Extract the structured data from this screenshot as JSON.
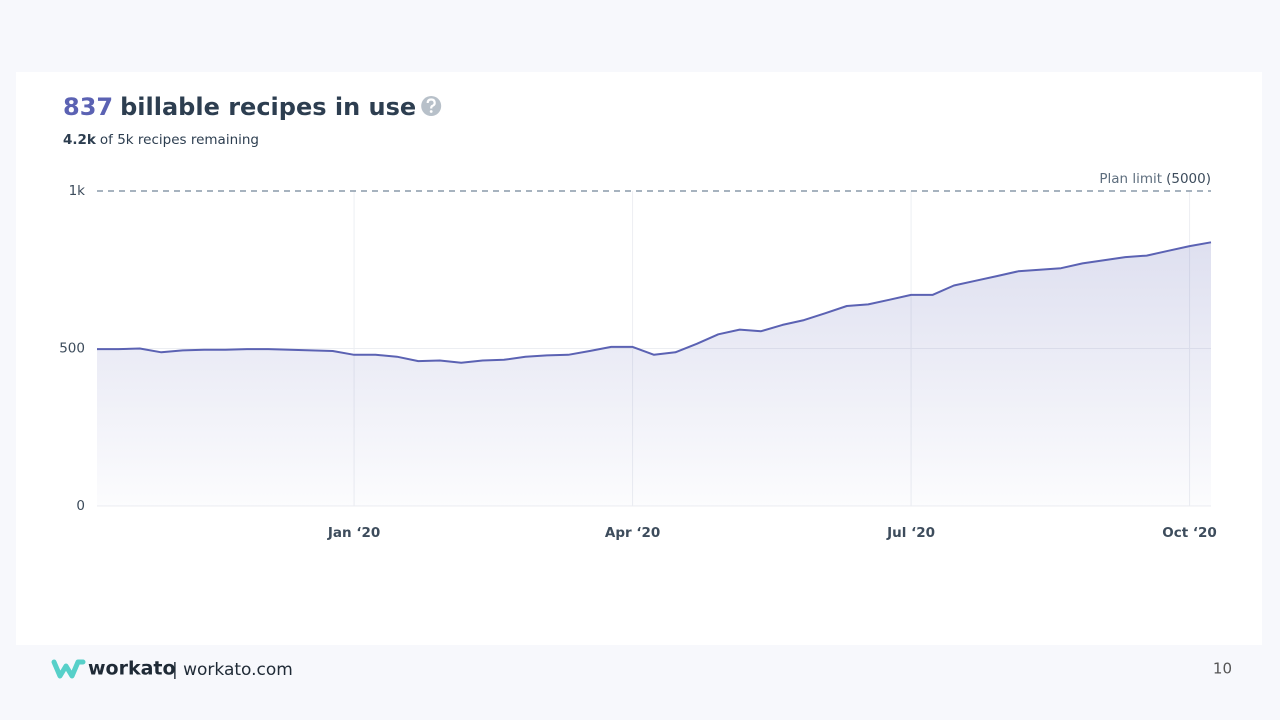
{
  "chart_data": {
    "type": "area",
    "title_value": 837,
    "title": "billable recipes in use",
    "subtitle_strong": "4.2k",
    "subtitle": "of 5k recipes remaining",
    "annotation": "Plan limit",
    "annotation_value": "(5000)",
    "categories": [
      null,
      null,
      null,
      null,
      null,
      null,
      null,
      null,
      null,
      null,
      null,
      null,
      "Jan ‘20",
      null,
      null,
      null,
      null,
      null,
      null,
      null,
      null,
      null,
      null,
      null,
      null,
      "Apr ‘20",
      null,
      null,
      null,
      null,
      null,
      null,
      null,
      null,
      null,
      null,
      null,
      null,
      "Jul ‘20",
      null,
      null,
      null,
      null,
      null,
      null,
      null,
      null,
      null,
      null,
      null,
      null,
      "Oct ‘20",
      null
    ],
    "values": [
      498,
      498,
      500,
      488,
      494,
      496,
      496,
      498,
      498,
      496,
      494,
      492,
      480,
      480,
      474,
      460,
      462,
      455,
      462,
      464,
      474,
      478,
      480,
      492,
      505,
      505,
      480,
      488,
      515,
      545,
      560,
      555,
      575,
      590,
      612,
      635,
      640,
      655,
      670,
      670,
      700,
      715,
      730,
      745,
      750,
      755,
      770,
      780,
      790,
      795,
      810,
      825,
      837
    ],
    "color": "#5b62b3",
    "ylim": [
      0,
      1000
    ],
    "yticks": [
      0,
      500,
      {
        "value": 1000,
        "label": "1k"
      }
    ],
    "grid": true
  },
  "footer": {
    "brand": "workato",
    "site": "| workato.com",
    "page": 10
  }
}
